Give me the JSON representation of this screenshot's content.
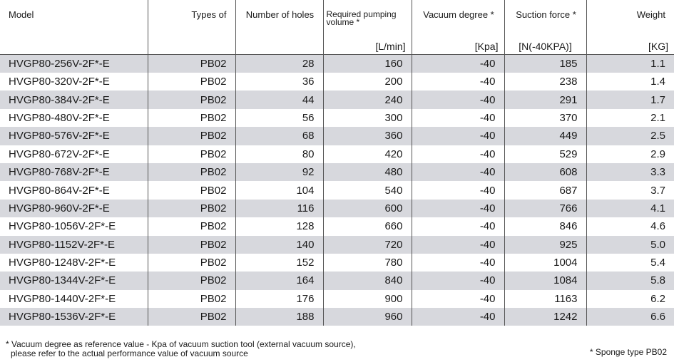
{
  "headers": {
    "model": "Model",
    "types": "Types of",
    "holes": "Number of holes",
    "pumping_line1": "Required pumping",
    "pumping_line2": "volume *",
    "vacuum": "Vacuum degree *",
    "suction": "Suction force *",
    "weight": "Weight"
  },
  "units": {
    "pumping": "[L/min]",
    "vacuum": "[Kpa]",
    "suction": "[N(-40KPA)]",
    "weight": "[KG]"
  },
  "rows": [
    {
      "model": "HVGP80-256V-2F*-E",
      "type": "PB02",
      "holes": "28",
      "pumping": "160",
      "vacuum": "-40",
      "suction": "185",
      "weight": "1.1"
    },
    {
      "model": "HVGP80-320V-2F*-E",
      "type": "PB02",
      "holes": "36",
      "pumping": "200",
      "vacuum": "-40",
      "suction": "238",
      "weight": "1.4"
    },
    {
      "model": "HVGP80-384V-2F*-E",
      "type": "PB02",
      "holes": "44",
      "pumping": "240",
      "vacuum": "-40",
      "suction": "291",
      "weight": "1.7"
    },
    {
      "model": "HVGP80-480V-2F*-E",
      "type": "PB02",
      "holes": "56",
      "pumping": "300",
      "vacuum": "-40",
      "suction": "370",
      "weight": "2.1"
    },
    {
      "model": "HVGP80-576V-2F*-E",
      "type": "PB02",
      "holes": "68",
      "pumping": "360",
      "vacuum": "-40",
      "suction": "449",
      "weight": "2.5"
    },
    {
      "model": "HVGP80-672V-2F*-E",
      "type": "PB02",
      "holes": "80",
      "pumping": "420",
      "vacuum": "-40",
      "suction": "529",
      "weight": "2.9"
    },
    {
      "model": "HVGP80-768V-2F*-E",
      "type": "PB02",
      "holes": "92",
      "pumping": "480",
      "vacuum": "-40",
      "suction": "608",
      "weight": "3.3"
    },
    {
      "model": "HVGP80-864V-2F*-E",
      "type": "PB02",
      "holes": "104",
      "pumping": "540",
      "vacuum": "-40",
      "suction": "687",
      "weight": "3.7"
    },
    {
      "model": "HVGP80-960V-2F*-E",
      "type": "PB02",
      "holes": "116",
      "pumping": "600",
      "vacuum": "-40",
      "suction": "766",
      "weight": "4.1"
    },
    {
      "model": "HVGP80-1056V-2F*-E",
      "type": "PB02",
      "holes": "128",
      "pumping": "660",
      "vacuum": "-40",
      "suction": "846",
      "weight": "4.6"
    },
    {
      "model": "HVGP80-1152V-2F*-E",
      "type": "PB02",
      "holes": "140",
      "pumping": "720",
      "vacuum": "-40",
      "suction": "925",
      "weight": "5.0"
    },
    {
      "model": "HVGP80-1248V-2F*-E",
      "type": "PB02",
      "holes": "152",
      "pumping": "780",
      "vacuum": "-40",
      "suction": "1004",
      "weight": "5.4"
    },
    {
      "model": "HVGP80-1344V-2F*-E",
      "type": "PB02",
      "holes": "164",
      "pumping": "840",
      "vacuum": "-40",
      "suction": "1084",
      "weight": "5.8"
    },
    {
      "model": "HVGP80-1440V-2F*-E",
      "type": "PB02",
      "holes": "176",
      "pumping": "900",
      "vacuum": "-40",
      "suction": "1163",
      "weight": "6.2"
    },
    {
      "model": "HVGP80-1536V-2F*-E",
      "type": "PB02",
      "holes": "188",
      "pumping": "960",
      "vacuum": "-40",
      "suction": "1242",
      "weight": "6.6"
    }
  ],
  "footnotes": {
    "left_line1": "* Vacuum degree as reference value - Kpa of vacuum suction tool (external vacuum source),",
    "left_line2": "please refer to the actual performance value of vacuum source",
    "right": "* Sponge type PB02"
  },
  "colors": {
    "shaded_row": "#d7d8dd",
    "plain_row": "#ffffff",
    "rule": "#555555"
  }
}
